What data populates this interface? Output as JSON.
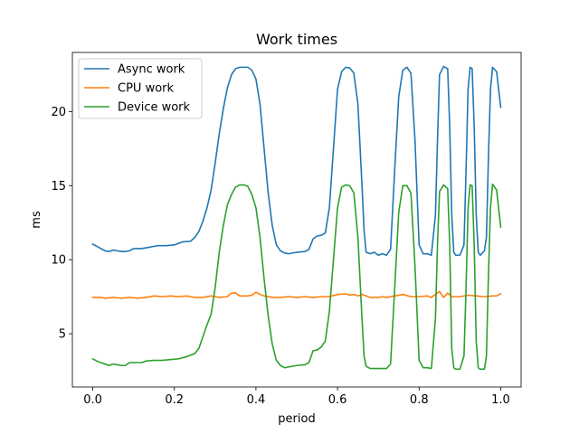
{
  "chart_data": {
    "type": "line",
    "title": "Work times",
    "xlabel": "period",
    "ylabel": "ms",
    "xlim": [
      -0.05,
      1.05
    ],
    "ylim": [
      1.4,
      24.0
    ],
    "xticks": [
      0.0,
      0.2,
      0.4,
      0.6,
      0.8,
      1.0
    ],
    "xtick_labels": [
      "0.0",
      "0.2",
      "0.4",
      "0.6",
      "0.8",
      "1.0"
    ],
    "yticks": [
      5,
      10,
      15,
      20
    ],
    "ytick_labels": [
      "5",
      "10",
      "15",
      "20"
    ],
    "grid": false,
    "legend_position": "upper-left",
    "series": [
      {
        "name": "Async work",
        "color": "#1f77b4",
        "points": [
          [
            0.0,
            11.05
          ],
          [
            0.01,
            10.9
          ],
          [
            0.02,
            10.75
          ],
          [
            0.03,
            10.6
          ],
          [
            0.04,
            10.55
          ],
          [
            0.05,
            10.65
          ],
          [
            0.06,
            10.6
          ],
          [
            0.07,
            10.55
          ],
          [
            0.08,
            10.55
          ],
          [
            0.09,
            10.6
          ],
          [
            0.1,
            10.75
          ],
          [
            0.12,
            10.75
          ],
          [
            0.14,
            10.85
          ],
          [
            0.16,
            10.95
          ],
          [
            0.18,
            10.95
          ],
          [
            0.2,
            11.0
          ],
          [
            0.22,
            11.2
          ],
          [
            0.24,
            11.25
          ],
          [
            0.25,
            11.5
          ],
          [
            0.26,
            11.9
          ],
          [
            0.27,
            12.6
          ],
          [
            0.28,
            13.5
          ],
          [
            0.29,
            14.7
          ],
          [
            0.3,
            16.5
          ],
          [
            0.31,
            18.5
          ],
          [
            0.32,
            20.2
          ],
          [
            0.33,
            21.6
          ],
          [
            0.34,
            22.5
          ],
          [
            0.35,
            22.9
          ],
          [
            0.36,
            23.0
          ],
          [
            0.38,
            23.0
          ],
          [
            0.39,
            22.8
          ],
          [
            0.4,
            22.2
          ],
          [
            0.41,
            20.5
          ],
          [
            0.42,
            17.5
          ],
          [
            0.43,
            14.5
          ],
          [
            0.44,
            12.3
          ],
          [
            0.45,
            11.0
          ],
          [
            0.46,
            10.6
          ],
          [
            0.47,
            10.45
          ],
          [
            0.48,
            10.4
          ],
          [
            0.5,
            10.5
          ],
          [
            0.52,
            10.55
          ],
          [
            0.53,
            10.7
          ],
          [
            0.54,
            11.4
          ],
          [
            0.55,
            11.6
          ],
          [
            0.56,
            11.65
          ],
          [
            0.57,
            11.8
          ],
          [
            0.58,
            13.5
          ],
          [
            0.59,
            17.5
          ],
          [
            0.6,
            21.5
          ],
          [
            0.61,
            22.7
          ],
          [
            0.62,
            23.0
          ],
          [
            0.63,
            22.95
          ],
          [
            0.64,
            22.6
          ],
          [
            0.65,
            20.5
          ],
          [
            0.66,
            15.0
          ],
          [
            0.665,
            12.0
          ],
          [
            0.67,
            10.5
          ],
          [
            0.68,
            10.4
          ],
          [
            0.69,
            10.5
          ],
          [
            0.7,
            10.3
          ],
          [
            0.71,
            10.4
          ],
          [
            0.72,
            10.3
          ],
          [
            0.73,
            10.7
          ],
          [
            0.74,
            16.0
          ],
          [
            0.75,
            21.0
          ],
          [
            0.76,
            22.8
          ],
          [
            0.77,
            23.0
          ],
          [
            0.78,
            22.6
          ],
          [
            0.79,
            18.0
          ],
          [
            0.8,
            11.0
          ],
          [
            0.81,
            10.4
          ],
          [
            0.82,
            10.4
          ],
          [
            0.83,
            10.3
          ],
          [
            0.84,
            13.0
          ],
          [
            0.845,
            18.0
          ],
          [
            0.85,
            22.5
          ],
          [
            0.86,
            23.05
          ],
          [
            0.87,
            22.9
          ],
          [
            0.875,
            19.0
          ],
          [
            0.88,
            13.0
          ],
          [
            0.885,
            10.5
          ],
          [
            0.89,
            10.3
          ],
          [
            0.9,
            10.3
          ],
          [
            0.91,
            11.0
          ],
          [
            0.915,
            16.0
          ],
          [
            0.92,
            21.5
          ],
          [
            0.925,
            23.0
          ],
          [
            0.93,
            22.9
          ],
          [
            0.935,
            19.0
          ],
          [
            0.94,
            13.0
          ],
          [
            0.945,
            10.5
          ],
          [
            0.95,
            10.3
          ],
          [
            0.96,
            10.6
          ],
          [
            0.965,
            11.5
          ],
          [
            0.97,
            17.0
          ],
          [
            0.975,
            21.5
          ],
          [
            0.98,
            23.0
          ],
          [
            0.99,
            22.7
          ],
          [
            1.0,
            20.3
          ]
        ]
      },
      {
        "name": "CPU work",
        "color": "#ff7f0e",
        "points": [
          [
            0.0,
            7.45
          ],
          [
            0.02,
            7.45
          ],
          [
            0.03,
            7.4
          ],
          [
            0.05,
            7.45
          ],
          [
            0.07,
            7.4
          ],
          [
            0.09,
            7.45
          ],
          [
            0.11,
            7.4
          ],
          [
            0.13,
            7.45
          ],
          [
            0.15,
            7.55
          ],
          [
            0.17,
            7.5
          ],
          [
            0.19,
            7.55
          ],
          [
            0.21,
            7.5
          ],
          [
            0.23,
            7.55
          ],
          [
            0.25,
            7.45
          ],
          [
            0.27,
            7.45
          ],
          [
            0.29,
            7.55
          ],
          [
            0.31,
            7.45
          ],
          [
            0.33,
            7.5
          ],
          [
            0.34,
            7.75
          ],
          [
            0.35,
            7.75
          ],
          [
            0.36,
            7.55
          ],
          [
            0.38,
            7.55
          ],
          [
            0.39,
            7.6
          ],
          [
            0.4,
            7.8
          ],
          [
            0.41,
            7.65
          ],
          [
            0.42,
            7.55
          ],
          [
            0.44,
            7.45
          ],
          [
            0.46,
            7.45
          ],
          [
            0.48,
            7.5
          ],
          [
            0.5,
            7.45
          ],
          [
            0.52,
            7.5
          ],
          [
            0.54,
            7.45
          ],
          [
            0.56,
            7.5
          ],
          [
            0.58,
            7.5
          ],
          [
            0.6,
            7.65
          ],
          [
            0.62,
            7.7
          ],
          [
            0.63,
            7.6
          ],
          [
            0.64,
            7.65
          ],
          [
            0.65,
            7.55
          ],
          [
            0.66,
            7.65
          ],
          [
            0.67,
            7.55
          ],
          [
            0.68,
            7.45
          ],
          [
            0.7,
            7.45
          ],
          [
            0.71,
            7.5
          ],
          [
            0.72,
            7.45
          ],
          [
            0.74,
            7.55
          ],
          [
            0.76,
            7.65
          ],
          [
            0.78,
            7.5
          ],
          [
            0.8,
            7.5
          ],
          [
            0.82,
            7.55
          ],
          [
            0.83,
            7.45
          ],
          [
            0.84,
            7.65
          ],
          [
            0.85,
            7.85
          ],
          [
            0.86,
            7.45
          ],
          [
            0.87,
            7.75
          ],
          [
            0.88,
            7.5
          ],
          [
            0.9,
            7.5
          ],
          [
            0.92,
            7.6
          ],
          [
            0.94,
            7.55
          ],
          [
            0.96,
            7.5
          ],
          [
            0.98,
            7.55
          ],
          [
            0.99,
            7.55
          ],
          [
            1.0,
            7.7
          ]
        ]
      },
      {
        "name": "Device work",
        "color": "#2ca02c",
        "points": [
          [
            0.0,
            3.3
          ],
          [
            0.01,
            3.15
          ],
          [
            0.02,
            3.05
          ],
          [
            0.03,
            2.95
          ],
          [
            0.04,
            2.85
          ],
          [
            0.05,
            2.95
          ],
          [
            0.06,
            2.9
          ],
          [
            0.07,
            2.85
          ],
          [
            0.08,
            2.85
          ],
          [
            0.09,
            3.05
          ],
          [
            0.1,
            3.05
          ],
          [
            0.12,
            3.05
          ],
          [
            0.13,
            3.15
          ],
          [
            0.15,
            3.2
          ],
          [
            0.17,
            3.2
          ],
          [
            0.19,
            3.25
          ],
          [
            0.21,
            3.3
          ],
          [
            0.23,
            3.45
          ],
          [
            0.25,
            3.65
          ],
          [
            0.26,
            4.0
          ],
          [
            0.27,
            4.8
          ],
          [
            0.28,
            5.6
          ],
          [
            0.29,
            6.3
          ],
          [
            0.3,
            8.1
          ],
          [
            0.31,
            10.5
          ],
          [
            0.32,
            12.3
          ],
          [
            0.33,
            13.7
          ],
          [
            0.34,
            14.4
          ],
          [
            0.35,
            14.9
          ],
          [
            0.36,
            15.05
          ],
          [
            0.37,
            15.05
          ],
          [
            0.38,
            14.95
          ],
          [
            0.39,
            14.4
          ],
          [
            0.4,
            13.5
          ],
          [
            0.41,
            11.5
          ],
          [
            0.42,
            8.7
          ],
          [
            0.43,
            6.2
          ],
          [
            0.44,
            4.3
          ],
          [
            0.45,
            3.2
          ],
          [
            0.46,
            2.85
          ],
          [
            0.47,
            2.7
          ],
          [
            0.48,
            2.75
          ],
          [
            0.5,
            2.85
          ],
          [
            0.52,
            2.9
          ],
          [
            0.53,
            3.05
          ],
          [
            0.54,
            3.85
          ],
          [
            0.55,
            3.9
          ],
          [
            0.56,
            4.1
          ],
          [
            0.57,
            4.5
          ],
          [
            0.58,
            6.5
          ],
          [
            0.59,
            10.0
          ],
          [
            0.6,
            13.5
          ],
          [
            0.61,
            14.9
          ],
          [
            0.62,
            15.05
          ],
          [
            0.63,
            15.0
          ],
          [
            0.64,
            14.5
          ],
          [
            0.65,
            11.5
          ],
          [
            0.66,
            6.0
          ],
          [
            0.665,
            3.5
          ],
          [
            0.67,
            2.8
          ],
          [
            0.68,
            2.65
          ],
          [
            0.7,
            2.65
          ],
          [
            0.72,
            2.65
          ],
          [
            0.73,
            2.95
          ],
          [
            0.74,
            8.0
          ],
          [
            0.75,
            13.2
          ],
          [
            0.76,
            15.0
          ],
          [
            0.77,
            15.0
          ],
          [
            0.78,
            14.5
          ],
          [
            0.79,
            9.5
          ],
          [
            0.8,
            3.2
          ],
          [
            0.81,
            2.7
          ],
          [
            0.82,
            2.7
          ],
          [
            0.83,
            2.65
          ],
          [
            0.84,
            6.0
          ],
          [
            0.845,
            11.0
          ],
          [
            0.85,
            14.6
          ],
          [
            0.86,
            15.05
          ],
          [
            0.87,
            14.8
          ],
          [
            0.875,
            11.0
          ],
          [
            0.88,
            4.0
          ],
          [
            0.885,
            2.7
          ],
          [
            0.89,
            2.6
          ],
          [
            0.9,
            2.6
          ],
          [
            0.91,
            3.5
          ],
          [
            0.915,
            8.0
          ],
          [
            0.92,
            13.5
          ],
          [
            0.925,
            15.05
          ],
          [
            0.93,
            15.0
          ],
          [
            0.935,
            11.0
          ],
          [
            0.94,
            4.5
          ],
          [
            0.945,
            2.7
          ],
          [
            0.95,
            2.6
          ],
          [
            0.96,
            2.6
          ],
          [
            0.965,
            3.5
          ],
          [
            0.97,
            9.0
          ],
          [
            0.975,
            13.5
          ],
          [
            0.98,
            15.1
          ],
          [
            0.99,
            14.7
          ],
          [
            1.0,
            12.2
          ]
        ]
      }
    ]
  }
}
